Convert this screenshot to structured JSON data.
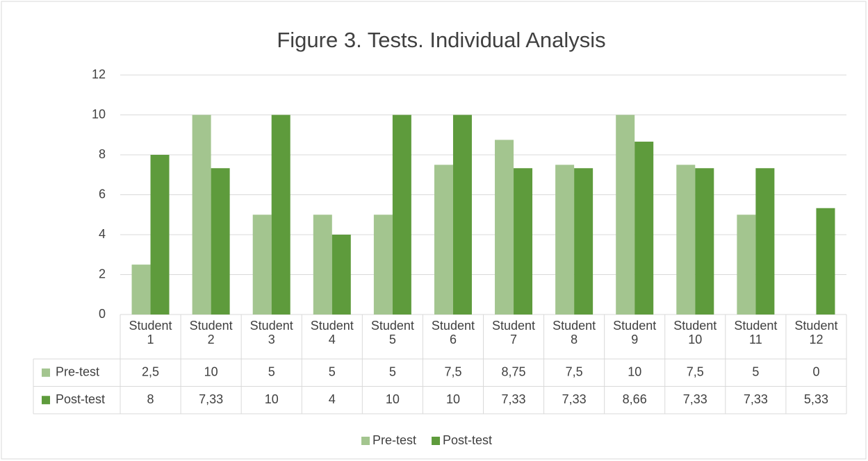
{
  "chart_data": {
    "type": "bar",
    "title": "Figure 3. Tests. Individual Analysis",
    "categories": [
      "Student 1",
      "Student 2",
      "Student 3",
      "Student 4",
      "Student 5",
      "Student 6",
      "Student 7",
      "Student 8",
      "Student 9",
      "Student 10",
      "Student 11",
      "Student 12"
    ],
    "series": [
      {
        "name": "Pre-test",
        "color": "#a3c58f",
        "values": [
          2.5,
          10,
          5,
          5,
          5,
          7.5,
          8.75,
          7.5,
          10,
          7.5,
          5,
          0
        ],
        "value_labels": [
          "2,5",
          "10",
          "5",
          "5",
          "5",
          "7,5",
          "8,75",
          "7,5",
          "10",
          "7,5",
          "5",
          "0"
        ]
      },
      {
        "name": "Post-test",
        "color": "#5e9b3c",
        "values": [
          8,
          7.33,
          10,
          4,
          10,
          10,
          7.33,
          7.33,
          8.66,
          7.33,
          7.33,
          5.33
        ],
        "value_labels": [
          "8",
          "7,33",
          "10",
          "4",
          "10",
          "10",
          "7,33",
          "7,33",
          "8,66",
          "7,33",
          "7,33",
          "5,33"
        ]
      }
    ],
    "ylim": [
      0,
      12
    ],
    "yticks": [
      0,
      2,
      4,
      6,
      8,
      10,
      12
    ],
    "grid": true,
    "legend": "bottom"
  }
}
